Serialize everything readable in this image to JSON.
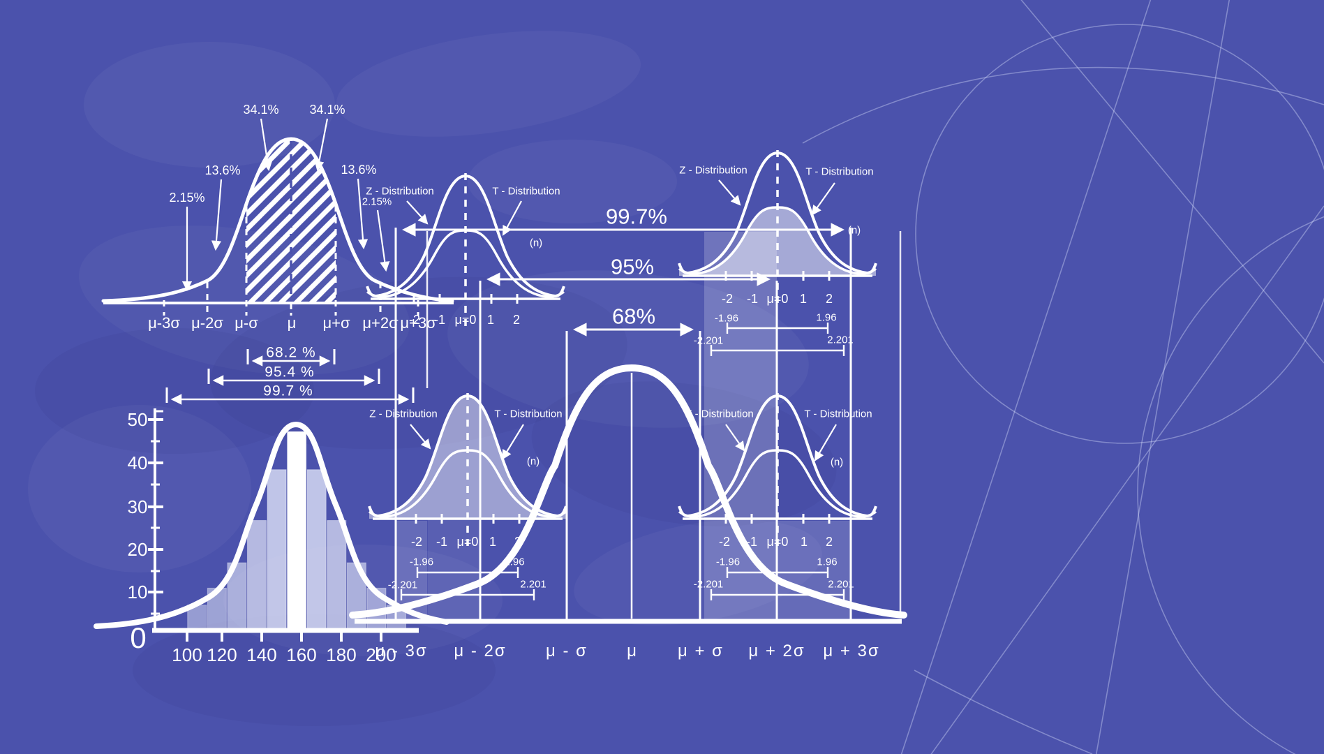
{
  "colors": {
    "background": "#4b52ac",
    "ink": "#ffffff",
    "bar_fill": "#e2e6f8",
    "light_fill": "rgba(255,255,255,0.5)"
  },
  "chart_data": [
    {
      "id": "standard-normal-segments",
      "type": "area",
      "x_tick_labels": [
        "μ-3σ",
        "μ-2σ",
        "μ-σ",
        "μ",
        "μ+σ",
        "μ+2σ",
        "μ+3σ"
      ],
      "segment_percentages": {
        "left_tail": "2.15%",
        "left_outer": "13.6%",
        "left_inner": "34.1%",
        "right_inner": "34.1%",
        "right_outer": "13.6%",
        "right_tail": "2.15%"
      },
      "interval_labels": [
        "68.2 %",
        "95.4 %",
        "99.7 %"
      ],
      "hatched_region": "μ-σ to μ+σ"
    },
    {
      "id": "z-vs-t-comparison",
      "type": "line",
      "legend": [
        "Z - Distribution",
        "T -  Distribution"
      ],
      "sample_size_note": "(n)",
      "x_tick_labels": [
        "-2",
        "-1",
        "μ=0",
        "1",
        "2"
      ],
      "z_critical_values": [
        "-1.96",
        "1.96"
      ],
      "t_critical_values": [
        "-2.201",
        "2.201"
      ],
      "instances": [
        "top-middle",
        "top-right",
        "bottom-middle",
        "bottom-right"
      ]
    },
    {
      "id": "empirical-rule-intervals",
      "type": "area",
      "interval_labels": [
        "99.7%",
        "95%",
        "68%"
      ],
      "x_tick_labels": [
        "μ - 3σ",
        "μ - 2σ",
        "μ - σ",
        "μ",
        "μ + σ",
        "μ + 2σ",
        "μ + 3σ"
      ]
    },
    {
      "id": "sample-histogram",
      "type": "bar",
      "y_tick_labels": [
        "50",
        "40",
        "30",
        "20",
        "10"
      ],
      "origin_label": "0",
      "x_tick_labels": [
        "100",
        "120",
        "140",
        "160",
        "180",
        "200"
      ],
      "bin_start": 100,
      "bin_width": 10,
      "values": [
        6,
        10,
        16,
        26,
        38,
        47,
        38,
        26,
        16,
        10,
        6
      ],
      "ylim": [
        0,
        50
      ],
      "overlay": "normal curve"
    }
  ]
}
